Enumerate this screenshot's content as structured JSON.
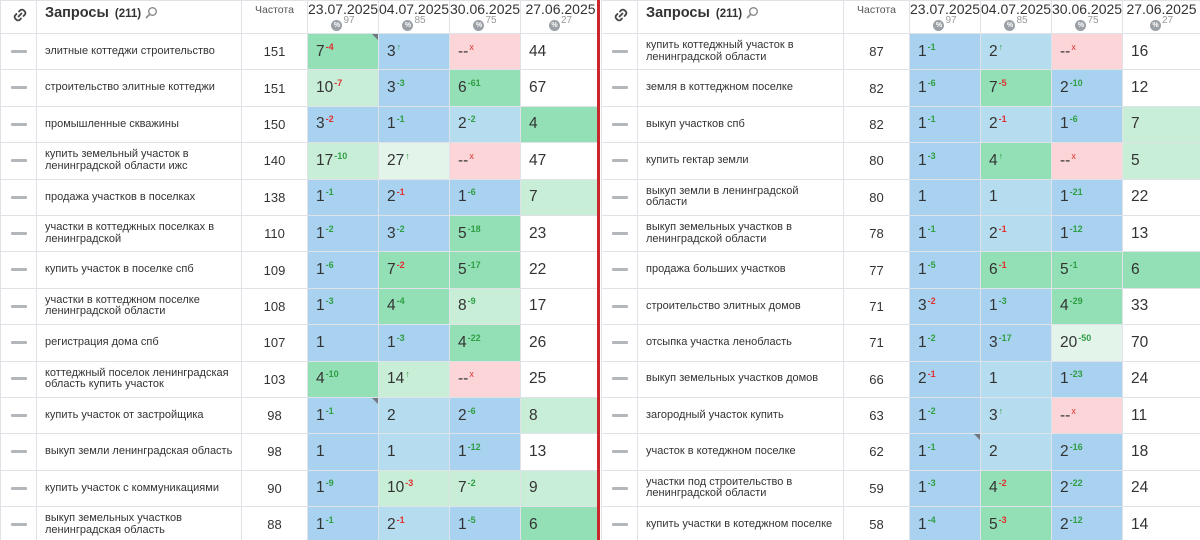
{
  "header": {
    "queries_title": "Запросы",
    "queries_count": "(211)",
    "frequency_label": "Частота",
    "dates": [
      {
        "date": "23.07.2025",
        "percent": "97"
      },
      {
        "date": "04.07.2025",
        "percent": "85"
      },
      {
        "date": "30.06.2025",
        "percent": "75"
      },
      {
        "date": "27.06.2025",
        "percent": "27"
      }
    ]
  },
  "icons": {
    "link": "link-icon",
    "search": "search-icon",
    "percent": "percent-icon",
    "row": "drag-handle-icon",
    "flag": "corner-flag-icon"
  },
  "colors": {
    "top1_3": "#a8d2ef",
    "top4_10": "#93e0b6",
    "top11_20": "#c9eed8",
    "top21_50": "#e3f5ea",
    "out": "#fbd5d8",
    "divider": "#c8272c",
    "delta_up": "#2f9e44",
    "delta_down": "#e03131"
  },
  "panels": [
    {
      "rows": [
        {
          "query": "элитные коттеджи строительство",
          "freq": "151",
          "p": [
            [
              "7",
              "-4",
              "neg",
              "t10",
              1
            ],
            [
              "3",
              "↑",
              "pos",
              "t1",
              0
            ],
            [
              "--",
              "x",
              "x",
              "out",
              0
            ],
            [
              "44",
              "",
              "",
              "none",
              0
            ]
          ]
        },
        {
          "query": "строительство элитные коттеджи",
          "freq": "151",
          "p": [
            [
              "10",
              "-7",
              "neg",
              "t20",
              0
            ],
            [
              "3",
              "-3",
              "pos",
              "t1",
              0
            ],
            [
              "6",
              "-61",
              "pos",
              "t10",
              0
            ],
            [
              "67",
              "",
              "",
              "none",
              0
            ]
          ]
        },
        {
          "query": "промышленные скважины",
          "freq": "150",
          "p": [
            [
              "3",
              "-2",
              "neg",
              "t1",
              0
            ],
            [
              "1",
              "-1",
              "pos",
              "t1",
              0
            ],
            [
              "2",
              "-2",
              "pos",
              "t3",
              0
            ],
            [
              "4",
              "",
              "",
              "t10",
              0
            ]
          ]
        },
        {
          "query": "купить земельный участок в ленинградской области ижс",
          "freq": "140",
          "p": [
            [
              "17",
              "-10",
              "pos",
              "t20",
              0
            ],
            [
              "27",
              "↑",
              "pos",
              "t50",
              0
            ],
            [
              "--",
              "x",
              "x",
              "out",
              0
            ],
            [
              "47",
              "",
              "",
              "none",
              0
            ]
          ]
        },
        {
          "query": "продажа участков в поселках",
          "freq": "138",
          "p": [
            [
              "1",
              "-1",
              "pos",
              "t1",
              0
            ],
            [
              "2",
              "-1",
              "neg",
              "t1",
              0
            ],
            [
              "1",
              "-6",
              "pos",
              "t1",
              0
            ],
            [
              "7",
              "",
              "",
              "t20",
              0
            ]
          ]
        },
        {
          "query": "участки в коттеджных поселках в ленинградской",
          "freq": "110",
          "p": [
            [
              "1",
              "-2",
              "pos",
              "t1",
              0
            ],
            [
              "3",
              "-2",
              "pos",
              "t1",
              0
            ],
            [
              "5",
              "-18",
              "pos",
              "t10",
              0
            ],
            [
              "23",
              "",
              "",
              "none",
              0
            ]
          ]
        },
        {
          "query": "купить участок в поселке спб",
          "freq": "109",
          "p": [
            [
              "1",
              "-6",
              "pos",
              "t1",
              0
            ],
            [
              "7",
              "-2",
              "neg",
              "t10",
              0
            ],
            [
              "5",
              "-17",
              "pos",
              "t10",
              0
            ],
            [
              "22",
              "",
              "",
              "none",
              0
            ]
          ]
        },
        {
          "query": "участки в коттеджном поселке ленинградской области",
          "freq": "108",
          "p": [
            [
              "1",
              "-3",
              "pos",
              "t1",
              0
            ],
            [
              "4",
              "-4",
              "pos",
              "t10",
              0
            ],
            [
              "8",
              "-9",
              "pos",
              "t20",
              0
            ],
            [
              "17",
              "",
              "",
              "none",
              0
            ]
          ]
        },
        {
          "query": "регистрация дома спб",
          "freq": "107",
          "p": [
            [
              "1",
              "",
              "",
              "t1",
              0
            ],
            [
              "1",
              "-3",
              "pos",
              "t1",
              0
            ],
            [
              "4",
              "-22",
              "pos",
              "t10",
              0
            ],
            [
              "26",
              "",
              "",
              "none",
              0
            ]
          ]
        },
        {
          "query": "коттеджный поселок ленинградская область купить участок",
          "freq": "103",
          "p": [
            [
              "4",
              "-10",
              "pos",
              "t10",
              0
            ],
            [
              "14",
              "↑",
              "pos",
              "t20",
              0
            ],
            [
              "--",
              "x",
              "x",
              "out",
              0
            ],
            [
              "25",
              "",
              "",
              "none",
              0
            ]
          ]
        },
        {
          "query": "купить участок от застройщика",
          "freq": "98",
          "p": [
            [
              "1",
              "-1",
              "pos",
              "t1",
              1
            ],
            [
              "2",
              "",
              "",
              "t3",
              0
            ],
            [
              "2",
              "-6",
              "pos",
              "t1",
              0
            ],
            [
              "8",
              "",
              "",
              "t20",
              0
            ]
          ]
        },
        {
          "query": "выкуп земли ленинградская область",
          "freq": "98",
          "p": [
            [
              "1",
              "",
              "",
              "t1",
              0
            ],
            [
              "1",
              "",
              "",
              "t3",
              0
            ],
            [
              "1",
              "-12",
              "pos",
              "t1",
              0
            ],
            [
              "13",
              "",
              "",
              "none",
              0
            ]
          ]
        },
        {
          "query": "купить участок с коммуникациями",
          "freq": "90",
          "p": [
            [
              "1",
              "-9",
              "pos",
              "t1",
              0
            ],
            [
              "10",
              "-3",
              "neg",
              "t20",
              0
            ],
            [
              "7",
              "-2",
              "pos",
              "t20",
              0
            ],
            [
              "9",
              "",
              "",
              "t20",
              0
            ]
          ]
        },
        {
          "query": "выкуп земельных участков ленинградская область",
          "freq": "88",
          "p": [
            [
              "1",
              "-1",
              "pos",
              "t1",
              0
            ],
            [
              "2",
              "-1",
              "neg",
              "t3",
              0
            ],
            [
              "1",
              "-5",
              "pos",
              "t1",
              0
            ],
            [
              "6",
              "",
              "",
              "t10",
              0
            ]
          ]
        }
      ]
    },
    {
      "rows": [
        {
          "query": "купить коттеджный участок в ленинградской области",
          "freq": "87",
          "p": [
            [
              "1",
              "-1",
              "pos",
              "t1",
              0
            ],
            [
              "2",
              "↑",
              "pos",
              "t3",
              0
            ],
            [
              "--",
              "x",
              "x",
              "out",
              0
            ],
            [
              "16",
              "",
              "",
              "none",
              0
            ]
          ]
        },
        {
          "query": "земля в коттеджном поселке",
          "freq": "82",
          "p": [
            [
              "1",
              "-6",
              "pos",
              "t1",
              0
            ],
            [
              "7",
              "-5",
              "neg",
              "t10",
              0
            ],
            [
              "2",
              "-10",
              "pos",
              "t1",
              0
            ],
            [
              "12",
              "",
              "",
              "none",
              0
            ]
          ]
        },
        {
          "query": "выкуп участков спб",
          "freq": "82",
          "p": [
            [
              "1",
              "-1",
              "pos",
              "t1",
              0
            ],
            [
              "2",
              "-1",
              "neg",
              "t3",
              0
            ],
            [
              "1",
              "-6",
              "pos",
              "t1",
              0
            ],
            [
              "7",
              "",
              "",
              "t20",
              0
            ]
          ]
        },
        {
          "query": "купить гектар земли",
          "freq": "80",
          "p": [
            [
              "1",
              "-3",
              "pos",
              "t1",
              0
            ],
            [
              "4",
              "↑",
              "pos",
              "t10",
              0
            ],
            [
              "--",
              "x",
              "x",
              "out",
              0
            ],
            [
              "5",
              "",
              "",
              "t20",
              0
            ]
          ]
        },
        {
          "query": "выкуп земли в ленинградской области",
          "freq": "80",
          "p": [
            [
              "1",
              "",
              "",
              "t1",
              0
            ],
            [
              "1",
              "",
              "",
              "t3",
              0
            ],
            [
              "1",
              "-21",
              "pos",
              "t1",
              0
            ],
            [
              "22",
              "",
              "",
              "none",
              0
            ]
          ]
        },
        {
          "query": "выкуп земельных участков в ленинградской области",
          "freq": "78",
          "p": [
            [
              "1",
              "-1",
              "pos",
              "t1",
              0
            ],
            [
              "2",
              "-1",
              "neg",
              "t3",
              0
            ],
            [
              "1",
              "-12",
              "pos",
              "t1",
              0
            ],
            [
              "13",
              "",
              "",
              "none",
              0
            ]
          ]
        },
        {
          "query": "продажа больших участков",
          "freq": "77",
          "p": [
            [
              "1",
              "-5",
              "pos",
              "t1",
              0
            ],
            [
              "6",
              "-1",
              "neg",
              "t10",
              0
            ],
            [
              "5",
              "-1",
              "pos",
              "t10",
              0
            ],
            [
              "6",
              "",
              "",
              "t10",
              0
            ]
          ]
        },
        {
          "query": "строительство элитных домов",
          "freq": "71",
          "p": [
            [
              "3",
              "-2",
              "neg",
              "t1",
              0
            ],
            [
              "1",
              "-3",
              "pos",
              "t1",
              0
            ],
            [
              "4",
              "-29",
              "pos",
              "t10",
              0
            ],
            [
              "33",
              "",
              "",
              "none",
              0
            ]
          ]
        },
        {
          "query": "отсыпка участка ленобласть",
          "freq": "71",
          "p": [
            [
              "1",
              "-2",
              "pos",
              "t1",
              0
            ],
            [
              "3",
              "-17",
              "pos",
              "t1",
              0
            ],
            [
              "20",
              "-50",
              "pos",
              "t50",
              0
            ],
            [
              "70",
              "",
              "",
              "none",
              0
            ]
          ]
        },
        {
          "query": "выкуп земельных участков домов",
          "freq": "66",
          "p": [
            [
              "2",
              "-1",
              "neg",
              "t1",
              0
            ],
            [
              "1",
              "",
              "",
              "t3",
              0
            ],
            [
              "1",
              "-23",
              "pos",
              "t1",
              0
            ],
            [
              "24",
              "",
              "",
              "none",
              0
            ]
          ]
        },
        {
          "query": "загородный участок купить",
          "freq": "63",
          "p": [
            [
              "1",
              "-2",
              "pos",
              "t1",
              0
            ],
            [
              "3",
              "↑",
              "pos",
              "t3",
              0
            ],
            [
              "--",
              "x",
              "x",
              "out",
              0
            ],
            [
              "11",
              "",
              "",
              "none",
              0
            ]
          ]
        },
        {
          "query": "участок в котеджном поселке",
          "freq": "62",
          "p": [
            [
              "1",
              "-1",
              "pos",
              "t1",
              1
            ],
            [
              "2",
              "",
              "",
              "t3",
              0
            ],
            [
              "2",
              "-16",
              "pos",
              "t1",
              0
            ],
            [
              "18",
              "",
              "",
              "none",
              0
            ]
          ]
        },
        {
          "query": "участки под строительство в ленинградской области",
          "freq": "59",
          "p": [
            [
              "1",
              "-3",
              "pos",
              "t1",
              0
            ],
            [
              "4",
              "-2",
              "neg",
              "t10",
              0
            ],
            [
              "2",
              "-22",
              "pos",
              "t1",
              0
            ],
            [
              "24",
              "",
              "",
              "none",
              0
            ]
          ]
        },
        {
          "query": "купить участки в котеджном поселке",
          "freq": "58",
          "p": [
            [
              "1",
              "-4",
              "pos",
              "t1",
              0
            ],
            [
              "5",
              "-3",
              "neg",
              "t10",
              0
            ],
            [
              "2",
              "-12",
              "pos",
              "t1",
              0
            ],
            [
              "14",
              "",
              "",
              "none",
              0
            ]
          ]
        }
      ]
    }
  ]
}
